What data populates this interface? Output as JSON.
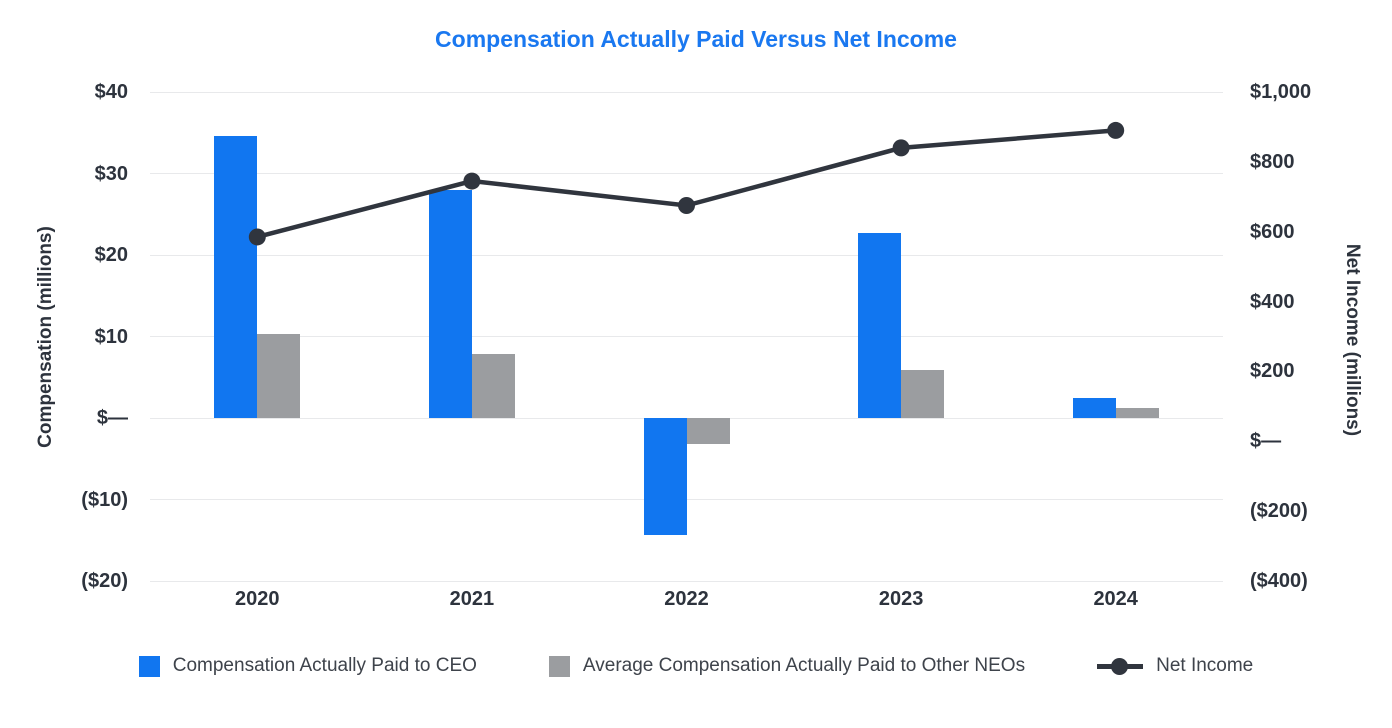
{
  "chart_data": {
    "type": "bar",
    "subtype": "dual-axis bar+line combo",
    "title": "Compensation Actually Paid Versus Net Income",
    "categories": [
      "2020",
      "2021",
      "2022",
      "2023",
      "2024"
    ],
    "series": [
      {
        "name": "Compensation Actually Paid to CEO",
        "type": "bar",
        "axis": "left",
        "values": [
          34.6,
          28.0,
          -14.3,
          22.7,
          2.4
        ]
      },
      {
        "name": "Average Compensation Actually Paid to Other NEOs",
        "type": "bar",
        "axis": "left",
        "values": [
          10.3,
          7.9,
          -3.2,
          5.9,
          1.2
        ]
      },
      {
        "name": "Net Income",
        "type": "line",
        "axis": "right",
        "values": [
          585,
          745,
          675,
          840,
          890
        ]
      }
    ],
    "left_axis": {
      "label": "Compensation (millions)",
      "ticks": [
        "$40",
        "$30",
        "$20",
        "$10",
        "$—",
        "($10)",
        "($20)"
      ],
      "values": [
        40,
        30,
        20,
        10,
        0,
        -10,
        -20
      ],
      "range": [
        -20,
        40
      ]
    },
    "right_axis": {
      "label": "Net Income (millions)",
      "ticks": [
        "$1,000",
        "$800",
        "$600",
        "$400",
        "$200",
        "$—",
        "($200)",
        "($400)"
      ],
      "values": [
        1000,
        800,
        600,
        400,
        200,
        0,
        -200,
        -400
      ],
      "range": [
        -400,
        1000
      ]
    },
    "grid": true,
    "legend_position": "bottom"
  },
  "colors": {
    "ceo_bar": "#1176f0",
    "neo_bar": "#9b9da0",
    "net_income_line": "#30353e",
    "title": "#1a78f0",
    "axis_text": "#2d333d",
    "legend_text": "#3e434b",
    "gridline": "#e8e9eb",
    "background": "#ffffff"
  }
}
